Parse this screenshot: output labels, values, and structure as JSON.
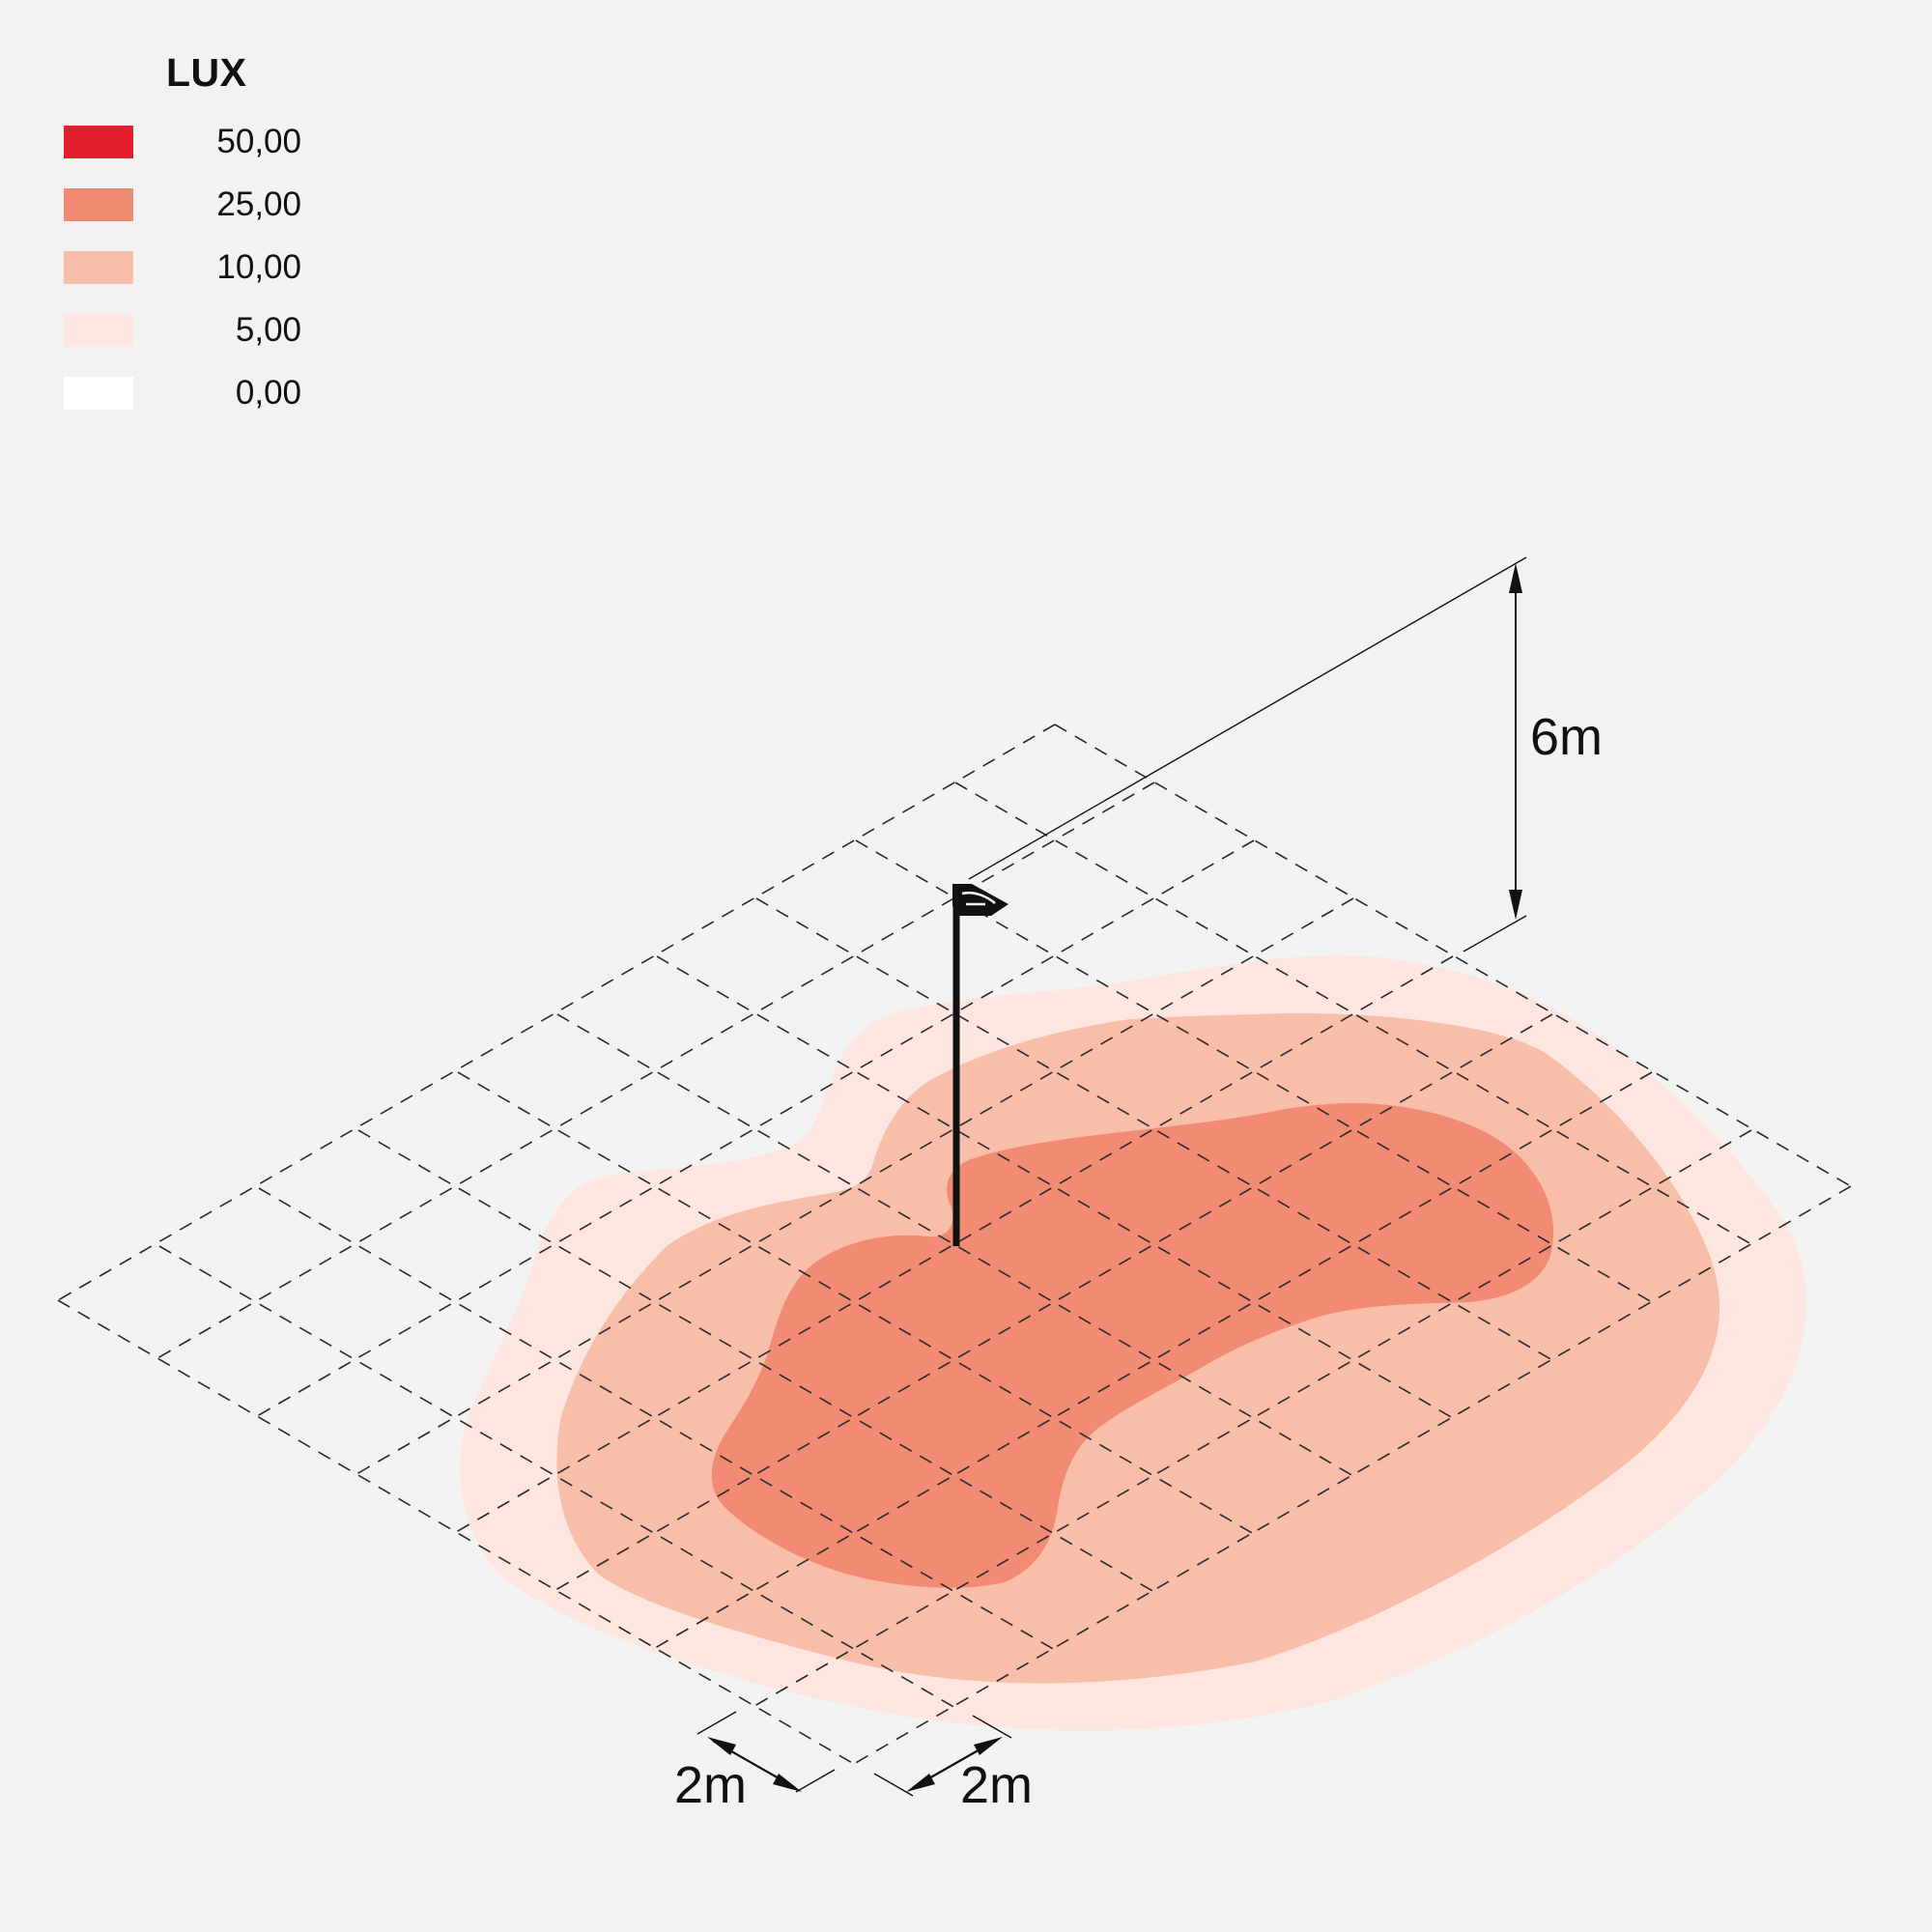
{
  "legend": {
    "title": "LUX",
    "items": [
      {
        "value": "50,00",
        "color": "#e51e2d"
      },
      {
        "value": "25,00",
        "color": "#f18b74"
      },
      {
        "value": "10,00",
        "color": "#f9bea9"
      },
      {
        "value": "5,00",
        "color": "#fde6df"
      },
      {
        "value": "0,00",
        "color": "#ffffff"
      }
    ]
  },
  "dimensions": {
    "height": "6m",
    "grid_x": "2m",
    "grid_y": "2m"
  },
  "colors": {
    "background": "#f2f2f2",
    "grid_line": "#2a2a2a",
    "pole": "#111111"
  }
}
